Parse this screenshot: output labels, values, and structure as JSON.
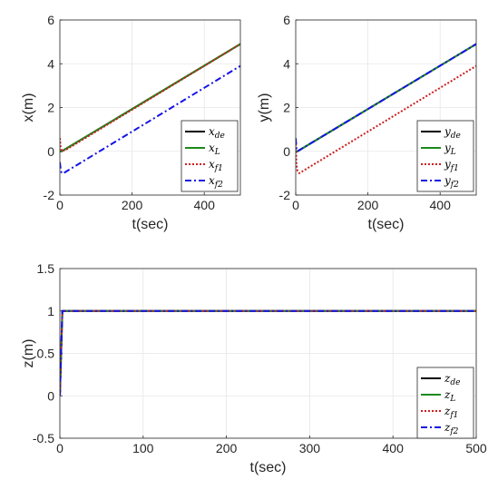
{
  "colors": {
    "black": "#000000",
    "green": "#1c8a1c",
    "red": "#cc1f1f",
    "blue": "#1414e6"
  },
  "chart_data": [
    {
      "type": "line",
      "xlabel": "t(sec)",
      "ylabel": "x(m)",
      "xlim": [
        0,
        500
      ],
      "ylim": [
        -2,
        6
      ],
      "xticks": [
        "0",
        "200",
        "400"
      ],
      "yticks": [
        "-2",
        "0",
        "2",
        "4",
        "6"
      ],
      "grid": true,
      "legend_position": "bottom-right",
      "legend": [
        {
          "base": "x",
          "sub": "de",
          "color": "#000000",
          "style": "solid"
        },
        {
          "base": "x",
          "sub": "L",
          "color": "#1c8a1c",
          "style": "solid"
        },
        {
          "base": "x",
          "sub": "f1",
          "color": "#cc1f1f",
          "style": "dotted"
        },
        {
          "base": "x",
          "sub": "f2",
          "color": "#1414e6",
          "style": "dashdot"
        }
      ],
      "series": [
        {
          "color": "#000000",
          "style": "solid",
          "x": [
            0,
            5,
            500
          ],
          "y": [
            0,
            0,
            4.9
          ]
        },
        {
          "color": "#1c8a1c",
          "style": "solid",
          "x": [
            0,
            5,
            500
          ],
          "y": [
            0,
            0,
            4.9
          ]
        },
        {
          "color": "#cc1f1f",
          "style": "dotted",
          "x": [
            0,
            2,
            5,
            20,
            500
          ],
          "y": [
            0.6,
            0.2,
            0,
            0.1,
            4.9
          ]
        },
        {
          "color": "#1414e6",
          "style": "dashdot",
          "x": [
            0,
            2,
            5,
            10,
            500
          ],
          "y": [
            -0.5,
            -0.8,
            -1.0,
            -1.0,
            3.9
          ]
        }
      ]
    },
    {
      "type": "line",
      "xlabel": "t(sec)",
      "ylabel": "y(m)",
      "xlim": [
        0,
        500
      ],
      "ylim": [
        -2,
        6
      ],
      "xticks": [
        "0",
        "200",
        "400"
      ],
      "yticks": [
        "-2",
        "0",
        "2",
        "4",
        "6"
      ],
      "grid": true,
      "legend_position": "bottom-right",
      "legend": [
        {
          "base": "y",
          "sub": "de",
          "color": "#000000",
          "style": "solid"
        },
        {
          "base": "y",
          "sub": "L",
          "color": "#1c8a1c",
          "style": "solid"
        },
        {
          "base": "y",
          "sub": "f1",
          "color": "#cc1f1f",
          "style": "dotted"
        },
        {
          "base": "y",
          "sub": "f2",
          "color": "#1414e6",
          "style": "dashdot"
        }
      ],
      "series": [
        {
          "color": "#000000",
          "style": "solid",
          "x": [
            0,
            5,
            500
          ],
          "y": [
            0,
            0,
            4.9
          ]
        },
        {
          "color": "#1c8a1c",
          "style": "solid",
          "x": [
            0,
            5,
            500
          ],
          "y": [
            0,
            0,
            4.9
          ]
        },
        {
          "color": "#cc1f1f",
          "style": "dotted",
          "x": [
            0,
            2,
            5,
            10,
            500
          ],
          "y": [
            0.5,
            -0.6,
            -0.9,
            -1.0,
            3.9
          ]
        },
        {
          "color": "#1414e6",
          "style": "dashdot",
          "x": [
            0,
            2,
            5,
            500
          ],
          "y": [
            0.6,
            0.1,
            0,
            4.9
          ]
        }
      ]
    },
    {
      "type": "line",
      "xlabel": "t(sec)",
      "ylabel": "z(m)",
      "xlim": [
        0,
        500
      ],
      "ylim": [
        -0.5,
        1.5
      ],
      "xticks": [
        "0",
        "100",
        "200",
        "300",
        "400",
        "500"
      ],
      "yticks": [
        "-0.5",
        "0",
        "0.5",
        "1",
        "1.5"
      ],
      "grid": true,
      "legend_position": "bottom-right",
      "legend": [
        {
          "base": "z",
          "sub": "de",
          "color": "#000000",
          "style": "solid"
        },
        {
          "base": "z",
          "sub": "L",
          "color": "#1c8a1c",
          "style": "solid"
        },
        {
          "base": "z",
          "sub": "f1",
          "color": "#cc1f1f",
          "style": "dotted"
        },
        {
          "base": "z",
          "sub": "f2",
          "color": "#1414e6",
          "style": "dashdot"
        }
      ],
      "series": [
        {
          "color": "#000000",
          "style": "solid",
          "x": [
            0,
            3,
            500
          ],
          "y": [
            0,
            1,
            1
          ]
        },
        {
          "color": "#1c8a1c",
          "style": "solid",
          "x": [
            0,
            3,
            500
          ],
          "y": [
            0,
            1,
            1
          ]
        },
        {
          "color": "#cc1f1f",
          "style": "dotted",
          "x": [
            0,
            3,
            500
          ],
          "y": [
            0,
            1,
            1
          ]
        },
        {
          "color": "#1414e6",
          "style": "dashdot",
          "x": [
            0,
            3,
            500
          ],
          "y": [
            0,
            1,
            1
          ]
        }
      ]
    }
  ]
}
